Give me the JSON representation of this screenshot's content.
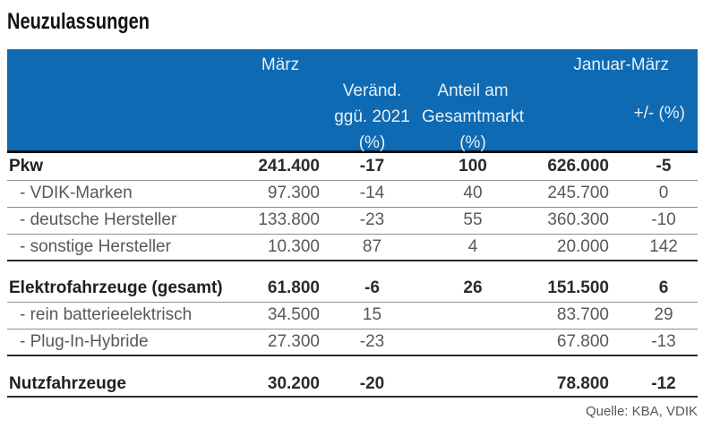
{
  "title": "Neuzulassungen",
  "source": "Quelle: KBA, VDIK",
  "colors": {
    "header_bg": "#0e6ab2",
    "header_text": "#e7f0f8",
    "bold_text": "#2b2b2b",
    "body_text": "#585858",
    "thin_line": "#8f8f8f",
    "thick_line": "#2d2d2d"
  },
  "chart_data": {
    "type": "table",
    "title": "Neuzulassungen",
    "columns": {
      "maerz": "März",
      "veraend_line1": "Veränd.",
      "veraend_line2": "ggü. 2021",
      "veraend_line3": "(%)",
      "anteil_line1": "Anteil am",
      "anteil_line2": "Gesamtmarkt",
      "anteil_line3": "(%)",
      "januar_maerz": "Januar-März",
      "plus_minus": "+/- (%)"
    },
    "rows": [
      {
        "label": "Pkw",
        "maerz": "241.400",
        "veraend": "-17",
        "anteil": "100",
        "januar_maerz": "626.000",
        "plus_minus": "-5"
      },
      {
        "label": "- VDIK-Marken",
        "maerz": "97.300",
        "veraend": "-14",
        "anteil": "40",
        "januar_maerz": "245.700",
        "plus_minus": "0"
      },
      {
        "label": "- deutsche Hersteller",
        "maerz": "133.800",
        "veraend": "-23",
        "anteil": "55",
        "januar_maerz": "360.300",
        "plus_minus": "-10"
      },
      {
        "label": "- sonstige Hersteller",
        "maerz": "10.300",
        "veraend": "87",
        "anteil": "4",
        "januar_maerz": "20.000",
        "plus_minus": "142"
      },
      {
        "label": "Elektrofahrzeuge (gesamt)",
        "maerz": "61.800",
        "veraend": "-6",
        "anteil": "26",
        "januar_maerz": "151.500",
        "plus_minus": "6"
      },
      {
        "label": "- rein batterieelektrisch",
        "maerz": "34.500",
        "veraend": "15",
        "anteil": "",
        "januar_maerz": "83.700",
        "plus_minus": "29"
      },
      {
        "label": "- Plug-In-Hybride",
        "maerz": "27.300",
        "veraend": "-23",
        "anteil": "",
        "januar_maerz": "67.800",
        "plus_minus": "-13"
      },
      {
        "label": "Nutzfahrzeuge",
        "maerz": "30.200",
        "veraend": "-20",
        "anteil": "",
        "januar_maerz": "78.800",
        "plus_minus": "-12"
      }
    ],
    "source": "Quelle: KBA, VDIK"
  }
}
